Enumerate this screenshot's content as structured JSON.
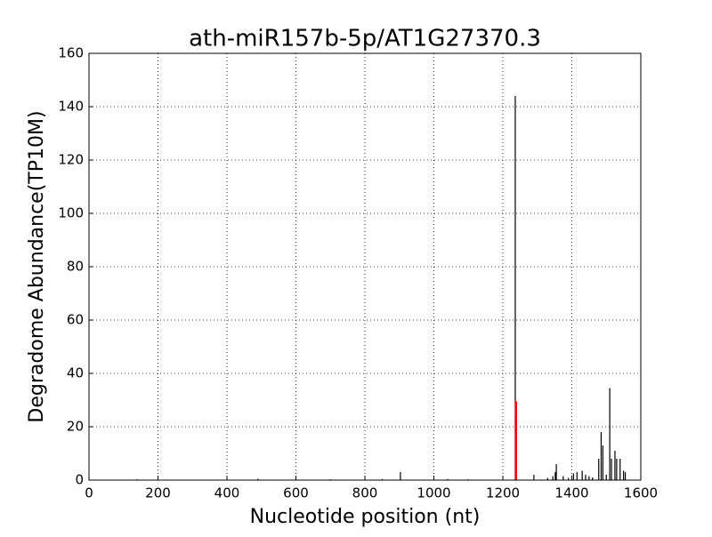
{
  "chart_data": {
    "type": "stem",
    "title": "ath-miR157b-5p/AT1G27370.3",
    "x_label": "Nucleotide position (nt)",
    "y_label": "Degradome Abundance(TP10M)",
    "xlim": [
      0,
      1600
    ],
    "xticks": [
      0,
      200,
      400,
      600,
      800,
      1000,
      1200,
      1400,
      1600
    ],
    "ylim": [
      0,
      160
    ],
    "yticks": [
      0,
      20,
      40,
      60,
      80,
      100,
      120,
      140,
      160
    ],
    "grid": true,
    "series": [
      {
        "color": "#000000",
        "x": [
          140,
          490,
          600,
          700,
          850,
          903,
          1040,
          1100,
          1236,
          1290,
          1330,
          1345,
          1352,
          1355,
          1375,
          1390,
          1405,
          1415,
          1430,
          1440,
          1450,
          1460,
          1478,
          1485,
          1490,
          1500,
          1510,
          1515,
          1525,
          1530,
          1540,
          1550,
          1555
        ],
        "values": [
          0.3,
          0.5,
          0.5,
          0.3,
          0.4,
          3,
          0.4,
          0.3,
          144,
          2,
          0.8,
          1.5,
          3,
          6,
          1.5,
          0.8,
          2.5,
          3,
          3.5,
          2,
          1.5,
          1,
          8,
          18,
          13,
          2,
          34.5,
          8,
          11,
          8,
          8,
          3.5,
          3
        ]
      },
      {
        "color": "#ff0000",
        "x": [
          1238
        ],
        "values": [
          29.5
        ]
      }
    ]
  }
}
